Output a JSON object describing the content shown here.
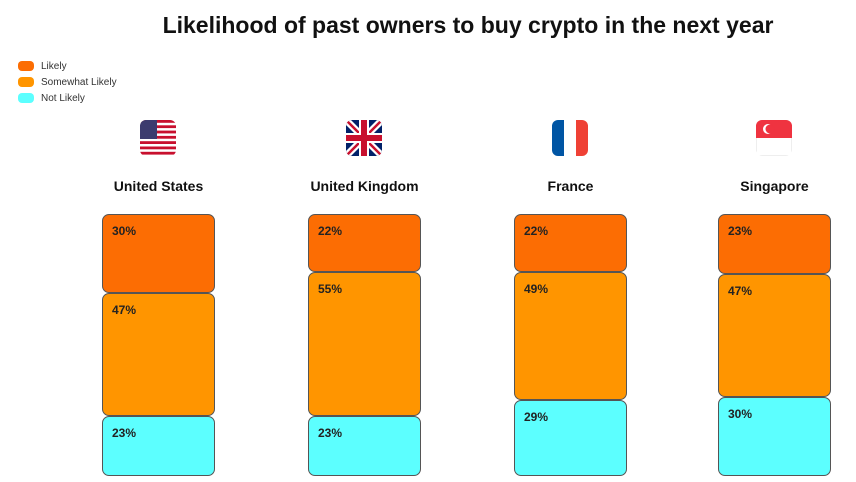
{
  "chart_data": {
    "type": "bar",
    "stacked": true,
    "title": "Likelihood of past owners to buy crypto in the next year",
    "categories": [
      "United States",
      "United Kingdom",
      "France",
      "Singapore"
    ],
    "flags": [
      "us-flag-icon",
      "uk-flag-icon",
      "france-flag-icon",
      "singapore-flag-icon"
    ],
    "series": [
      {
        "name": "Likely",
        "color": "#FC6D03",
        "values": [
          30,
          22,
          22,
          23
        ]
      },
      {
        "name": "Somewhat Likely",
        "color": "#FF9500",
        "values": [
          47,
          55,
          49,
          47
        ]
      },
      {
        "name": "Not Likely",
        "color": "#5CFFFF",
        "values": [
          23,
          23,
          29,
          30
        ]
      }
    ],
    "value_suffix": "%",
    "legend_position": "top-left",
    "grid": false
  }
}
